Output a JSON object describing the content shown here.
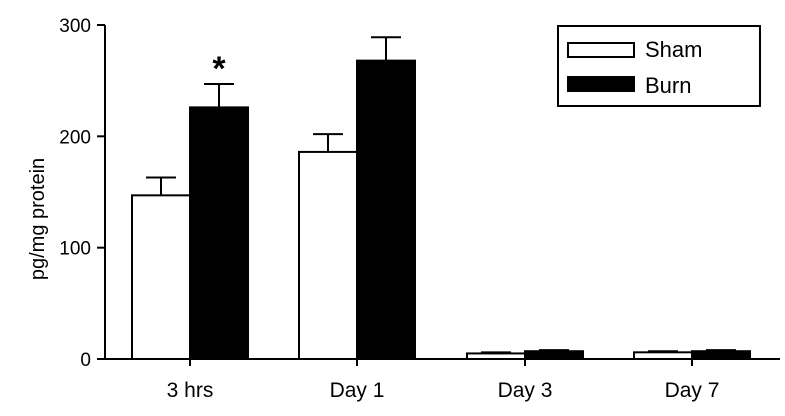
{
  "chart_data": {
    "type": "bar",
    "title": "",
    "xlabel": "",
    "ylabel": "pg/mg protein",
    "ylim": [
      0,
      300
    ],
    "yticks": [
      0,
      100,
      200,
      300
    ],
    "categories": [
      "3 hrs",
      "Day 1",
      "Day 3",
      "Day 7"
    ],
    "series": [
      {
        "name": "Sham",
        "values": [
          147,
          186,
          5,
          6
        ],
        "errors": [
          16,
          16,
          1,
          1
        ],
        "fill": "#ffffff"
      },
      {
        "name": "Burn",
        "values": [
          226,
          268,
          7,
          7
        ],
        "errors": [
          21,
          21,
          1,
          1
        ],
        "fill": "#000000"
      }
    ],
    "annotations": [
      {
        "category": "3 hrs",
        "series": "Burn",
        "text": "*"
      }
    ],
    "legend": {
      "position": "top-right"
    },
    "grid": false
  }
}
